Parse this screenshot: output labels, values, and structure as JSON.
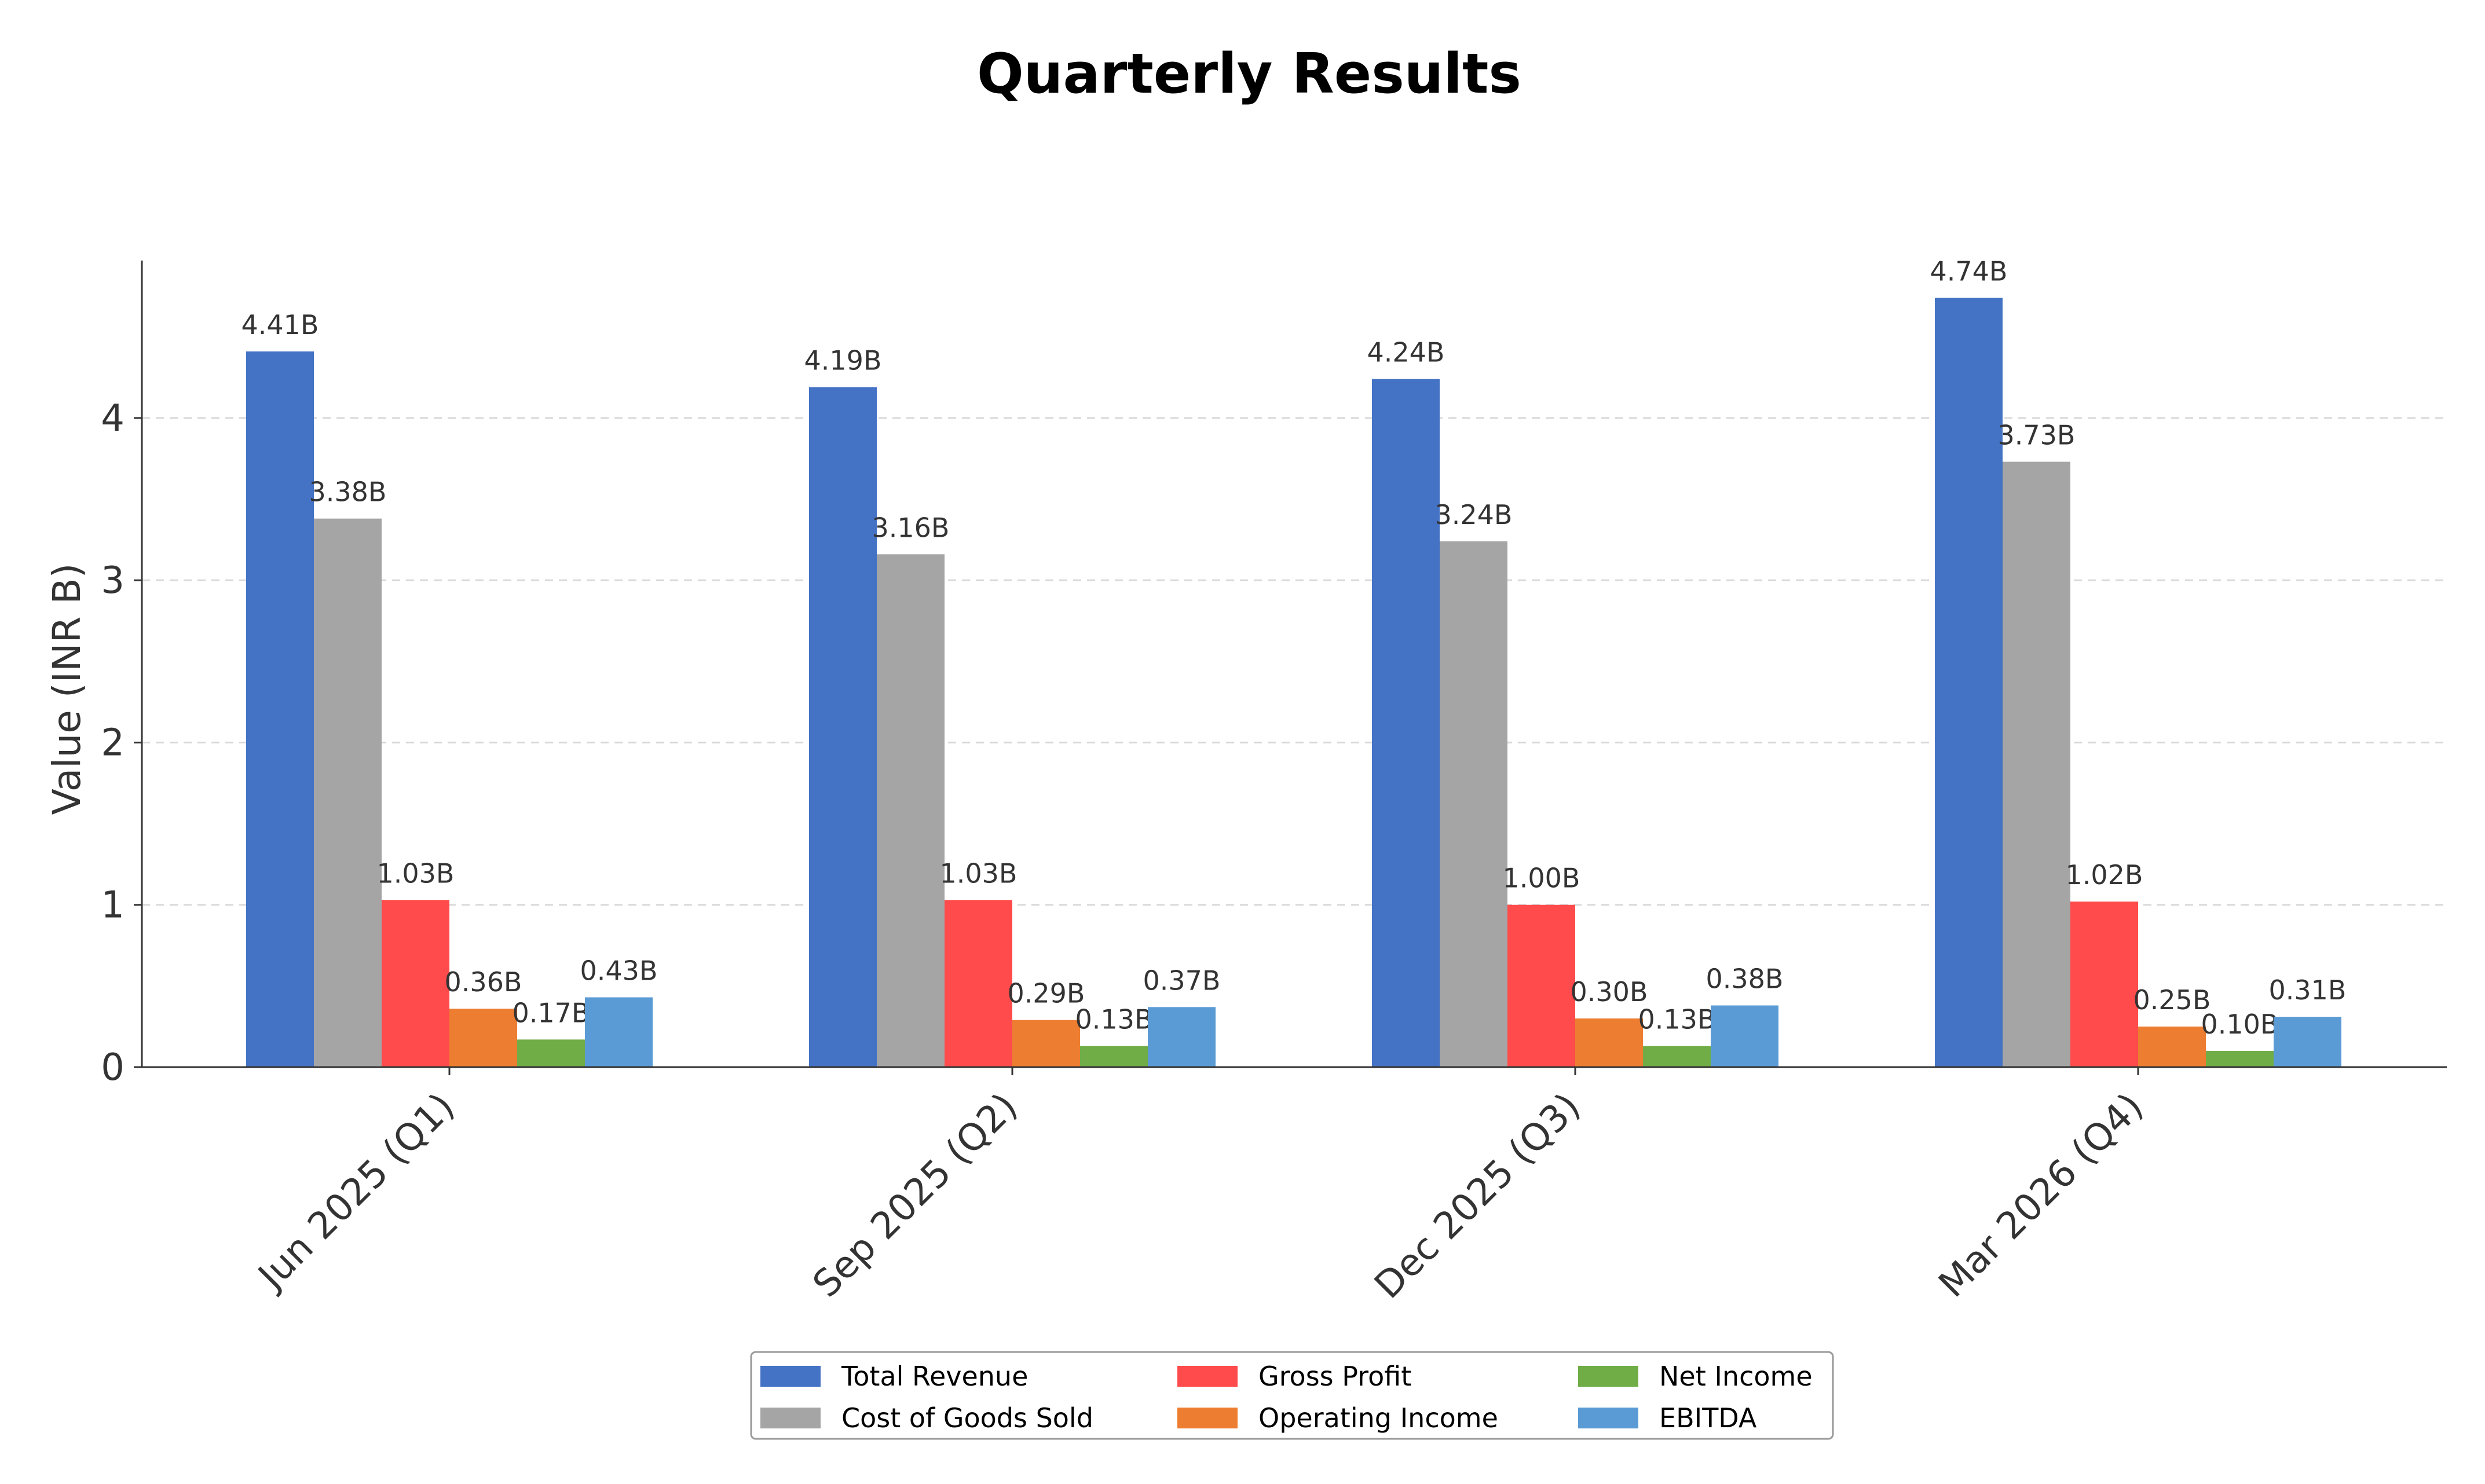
{
  "chart_data": {
    "type": "bar",
    "title": "Quarterly Results",
    "ylabel": "Value (INR B)",
    "xlabel": "",
    "categories": [
      "Jun 2025 (Q1)",
      "Sep 2025 (Q2)",
      "Dec 2025 (Q3)",
      "Mar 2026 (Q4)"
    ],
    "ylim": [
      0,
      4.97
    ],
    "yticks": [
      "0",
      "1",
      "2",
      "3",
      "4"
    ],
    "grid": "horizontal dashed",
    "legend_position": "bottom-center",
    "series": [
      {
        "name": "Total Revenue",
        "color": "#4472C4",
        "values": [
          4.41,
          4.19,
          4.24,
          4.74
        ],
        "labels": [
          "4.41B",
          "4.19B",
          "4.24B",
          "4.74B"
        ]
      },
      {
        "name": "Cost of Goods Sold",
        "color": "#A5A5A5",
        "values": [
          3.38,
          3.16,
          3.24,
          3.73
        ],
        "labels": [
          "3.38B",
          "3.16B",
          "3.24B",
          "3.73B"
        ]
      },
      {
        "name": "Gross Profit",
        "color": "#FF4B4B",
        "values": [
          1.03,
          1.03,
          1.0,
          1.02
        ],
        "labels": [
          "1.03B",
          "1.03B",
          "1.00B",
          "1.02B"
        ]
      },
      {
        "name": "Operating Income",
        "color": "#ED7D31",
        "values": [
          0.36,
          0.29,
          0.3,
          0.25
        ],
        "labels": [
          "0.36B",
          "0.29B",
          "0.30B",
          "0.25B"
        ]
      },
      {
        "name": "Net Income",
        "color": "#70AD47",
        "values": [
          0.17,
          0.13,
          0.13,
          0.1
        ],
        "labels": [
          "0.17B",
          "0.13B",
          "0.13B",
          "0.10B"
        ]
      },
      {
        "name": "EBITDA",
        "color": "#5B9BD5",
        "values": [
          0.43,
          0.37,
          0.38,
          0.31
        ],
        "labels": [
          "0.43B",
          "0.37B",
          "0.38B",
          "0.31B"
        ]
      }
    ]
  }
}
